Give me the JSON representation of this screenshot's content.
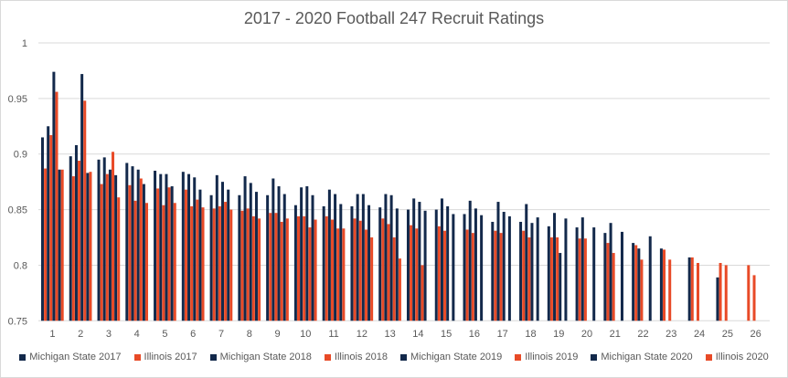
{
  "chart_data": {
    "type": "bar",
    "title": "2017 - 2020 Football 247 Recruit Ratings",
    "xlabel": "",
    "ylabel": "",
    "ylim": [
      0.75,
      1
    ],
    "yticks": [
      "0.75",
      "0.8",
      "0.85",
      "0.9",
      "0.95",
      "1"
    ],
    "grid": true,
    "legend_position": "bottom",
    "categories": [
      "1",
      "2",
      "3",
      "4",
      "5",
      "6",
      "7",
      "8",
      "9",
      "10",
      "11",
      "12",
      "13",
      "14",
      "15",
      "16",
      "17",
      "18",
      "19",
      "20",
      "21",
      "22",
      "23",
      "24",
      "25",
      "26"
    ],
    "series": [
      {
        "name": "Michigan State 2017",
        "color": "#13294b",
        "values": [
          0.915,
          0.898,
          0.895,
          0.892,
          0.885,
          0.884,
          0.863,
          0.863,
          0.863,
          0.854,
          0.853,
          0.853,
          0.852,
          0.85,
          0.85,
          0.846,
          0.839,
          0.839,
          0.835,
          0.834,
          0.829,
          0.82,
          0.815,
          0.807,
          0.789,
          null
        ]
      },
      {
        "name": "Illinois 2017",
        "color": "#e84a27",
        "values": [
          0.887,
          0.88,
          0.873,
          0.872,
          0.869,
          0.868,
          0.851,
          0.849,
          0.847,
          0.844,
          0.844,
          0.842,
          0.842,
          0.836,
          0.835,
          0.832,
          0.831,
          0.831,
          0.825,
          0.824,
          0.82,
          0.818,
          0.814,
          0.807,
          0.802,
          0.8
        ]
      },
      {
        "name": "Michigan State 2018",
        "color": "#13294b",
        "values": [
          0.925,
          0.908,
          0.897,
          0.889,
          0.882,
          0.882,
          0.881,
          0.88,
          0.878,
          0.87,
          0.868,
          0.864,
          0.864,
          0.86,
          0.86,
          0.858,
          0.857,
          0.855,
          0.847,
          0.843,
          0.838,
          0.815,
          null,
          null,
          null,
          null
        ]
      },
      {
        "name": "Illinois 2018",
        "color": "#e84a27",
        "values": [
          0.917,
          0.894,
          0.882,
          0.858,
          0.854,
          0.853,
          0.853,
          0.851,
          0.847,
          0.844,
          0.841,
          0.84,
          0.837,
          0.833,
          0.831,
          0.829,
          0.829,
          0.825,
          0.825,
          0.824,
          0.811,
          0.805,
          0.805,
          0.802,
          0.8,
          0.791
        ]
      },
      {
        "name": "Michigan State 2019",
        "color": "#13294b",
        "values": [
          0.974,
          0.972,
          0.886,
          0.886,
          0.882,
          0.879,
          0.875,
          0.874,
          0.871,
          0.871,
          0.864,
          0.864,
          0.863,
          0.857,
          0.853,
          0.851,
          0.848,
          0.838,
          0.811,
          null,
          null,
          null,
          null,
          null,
          null,
          null
        ]
      },
      {
        "name": "Illinois 2019",
        "color": "#e84a27",
        "values": [
          0.956,
          0.948,
          0.902,
          0.878,
          0.87,
          0.859,
          0.857,
          0.844,
          0.839,
          0.834,
          0.833,
          0.832,
          0.825,
          0.8,
          null,
          null,
          null,
          null,
          null,
          null,
          null,
          null,
          null,
          null,
          null,
          null
        ]
      },
      {
        "name": "Michigan State 2020",
        "color": "#13294b",
        "values": [
          0.886,
          0.883,
          0.881,
          0.873,
          0.871,
          0.868,
          0.868,
          0.866,
          0.864,
          0.863,
          0.855,
          0.854,
          0.851,
          0.849,
          0.846,
          0.845,
          0.844,
          0.843,
          0.842,
          0.834,
          0.83,
          0.826,
          null,
          null,
          null,
          null
        ]
      },
      {
        "name": "Illinois 2020",
        "color": "#e84a27",
        "values": [
          0.886,
          0.884,
          0.861,
          0.856,
          0.856,
          0.852,
          0.85,
          0.842,
          0.842,
          0.841,
          0.833,
          0.825,
          0.806,
          null,
          null,
          null,
          null,
          null,
          null,
          null,
          null,
          null,
          null,
          null,
          null,
          null
        ]
      }
    ]
  }
}
